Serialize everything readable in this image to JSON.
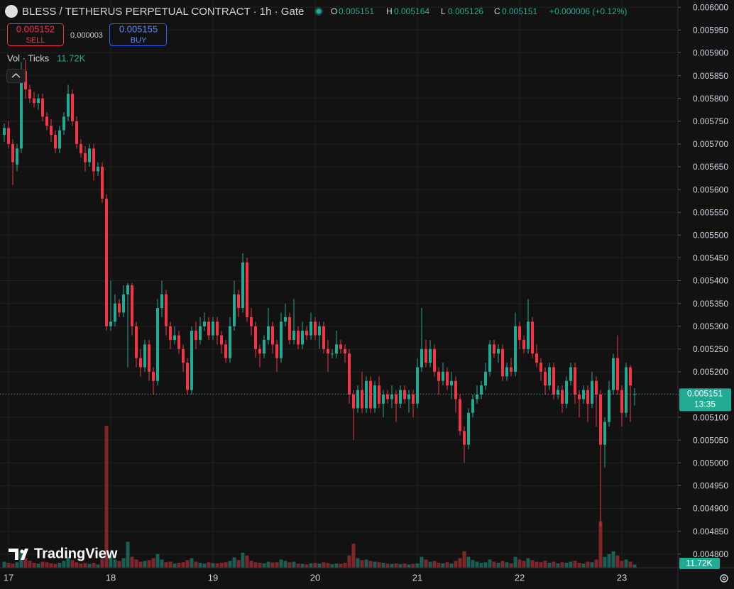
{
  "header": {
    "title": "BLESS / TETHERUS PERPETUAL CONTRACT · 1h · Gate",
    "legend_labels": [
      "O",
      "H",
      "L",
      "C"
    ],
    "change": "+0.000006 (+0.12%)"
  },
  "trade": {
    "sell_price": 0.005152,
    "sell": "SELL",
    "spread": 3e-06,
    "buy_price": 0.005155,
    "buy": "BUY"
  },
  "countdown": "13:35",
  "logo": "TradingView",
  "chart_data": {
    "type": "candlestick",
    "categories": [
      null,
      "17",
      null,
      null,
      null,
      null,
      null,
      null,
      null,
      null,
      null,
      null,
      null,
      null,
      null,
      null,
      null,
      null,
      null,
      null,
      null,
      null,
      null,
      null,
      null,
      "18",
      null,
      null,
      null,
      null,
      null,
      null,
      null,
      null,
      null,
      null,
      null,
      null,
      null,
      null,
      null,
      null,
      null,
      null,
      null,
      null,
      null,
      null,
      null,
      "19",
      null,
      null,
      null,
      null,
      null,
      null,
      null,
      null,
      null,
      null,
      null,
      null,
      null,
      null,
      null,
      null,
      null,
      null,
      null,
      null,
      null,
      null,
      null,
      "20",
      null,
      null,
      null,
      null,
      null,
      null,
      null,
      null,
      null,
      null,
      null,
      null,
      null,
      null,
      null,
      null,
      null,
      null,
      null,
      null,
      null,
      null,
      null,
      "21",
      null,
      null,
      null,
      null,
      null,
      null,
      null,
      null,
      null,
      null,
      null,
      null,
      null,
      null,
      null,
      null,
      null,
      null,
      null,
      null,
      null,
      null,
      null,
      "22",
      null,
      null,
      null,
      null,
      null,
      null,
      null,
      null,
      null,
      null,
      null,
      null,
      null,
      null,
      null,
      null,
      null,
      null,
      null,
      null,
      null,
      null,
      null,
      "23",
      null,
      null,
      null
    ],
    "open": [
      0.00572,
      0.005735,
      0.0057,
      0.005655,
      0.00569,
      0.00586,
      0.00582,
      0.0058,
      0.00579,
      0.0058,
      0.00576,
      0.00574,
      0.00572,
      0.00569,
      0.00573,
      0.00576,
      0.00581,
      0.00575,
      0.0057,
      0.00568,
      0.00566,
      0.00569,
      0.00564,
      0.00565,
      0.00558,
      0.0053,
      0.00531,
      0.00535,
      0.00533,
      0.00537,
      0.00539,
      0.0053,
      0.00523,
      0.00521,
      0.00526,
      0.0052,
      0.00518,
      0.00534,
      0.00537,
      0.0053,
      0.00527,
      0.00528,
      0.00525,
      0.00522,
      0.00516,
      0.00529,
      0.00527,
      0.0053,
      0.00531,
      0.00528,
      0.00531,
      0.00528,
      0.00526,
      0.00523,
      0.0053,
      0.00537,
      0.00534,
      0.00544,
      0.00532,
      0.0053,
      0.00525,
      0.00524,
      0.00527,
      0.0053,
      0.00526,
      0.00523,
      0.00531,
      0.00532,
      0.00527,
      0.00529,
      0.00526,
      0.00529,
      0.00528,
      0.00531,
      0.00528,
      0.0053,
      0.00525,
      0.00524,
      0.00524,
      0.00526,
      0.00525,
      0.00524,
      0.00515,
      0.00512,
      0.00516,
      0.00512,
      0.00518,
      0.00512,
      0.00517,
      0.00513,
      0.00515,
      0.00514,
      0.00515,
      0.00513,
      0.00516,
      0.00514,
      0.00515,
      0.00513,
      0.00521,
      0.00525,
      0.00522,
      0.00525,
      0.0052,
      0.00518,
      0.0052,
      0.00517,
      0.00518,
      0.00514,
      0.00507,
      0.00504,
      0.00511,
      0.00514,
      0.00515,
      0.00517,
      0.0052,
      0.00526,
      0.00524,
      0.00525,
      0.00519,
      0.00521,
      0.0052,
      0.0053,
      0.00527,
      0.00525,
      0.00531,
      0.00524,
      0.00522,
      0.0052,
      0.00517,
      0.00521,
      0.00515,
      0.00516,
      0.00513,
      0.00518,
      0.00521,
      0.00515,
      0.00514,
      0.00516,
      0.00513,
      0.00518,
      0.00515,
      0.00504,
      0.00509,
      0.00516,
      0.00523,
      0.00516,
      0.00511,
      0.00521,
      0.005151
    ],
    "high": [
      0.005745,
      0.00575,
      0.00571,
      0.0057,
      0.00588,
      0.005885,
      0.00583,
      0.005815,
      0.00581,
      0.00581,
      0.00577,
      0.005755,
      0.00573,
      0.00574,
      0.00577,
      0.00583,
      0.00582,
      0.00576,
      0.00571,
      0.005695,
      0.0057,
      0.0057,
      0.00566,
      0.00566,
      0.00559,
      0.0054,
      0.00537,
      0.00536,
      0.00539,
      0.005395,
      0.005395,
      0.00531,
      0.00525,
      0.00527,
      0.00527,
      0.00521,
      0.00536,
      0.0054,
      0.00538,
      0.00531,
      0.0053,
      0.00529,
      0.00526,
      0.00523,
      0.0053,
      0.00531,
      0.00532,
      0.00533,
      0.00532,
      0.00532,
      0.00532,
      0.00529,
      0.00527,
      0.00532,
      0.0054,
      0.00538,
      0.00546,
      0.00545,
      0.00534,
      0.00531,
      0.00526,
      0.00528,
      0.00534,
      0.00531,
      0.00527,
      0.00533,
      0.00535,
      0.00533,
      0.00536,
      0.0053,
      0.00531,
      0.0053,
      0.00533,
      0.00532,
      0.00531,
      0.00531,
      0.00527,
      0.00525,
      0.00529,
      0.00527,
      0.00526,
      0.00525,
      0.00516,
      0.00517,
      0.0052,
      0.00519,
      0.00519,
      0.00518,
      0.00519,
      0.00516,
      0.00516,
      0.00517,
      0.00516,
      0.00517,
      0.00517,
      0.00516,
      0.00516,
      0.00523,
      0.00534,
      0.00527,
      0.00527,
      0.00526,
      0.00521,
      0.00522,
      0.00521,
      0.0052,
      0.00519,
      0.00515,
      0.00508,
      0.00512,
      0.00515,
      0.00517,
      0.00518,
      0.00522,
      0.00527,
      0.00527,
      0.00526,
      0.00526,
      0.00522,
      0.00523,
      0.00533,
      0.00531,
      0.00528,
      0.00536,
      0.00532,
      0.00526,
      0.00523,
      0.00521,
      0.00522,
      0.00522,
      0.00517,
      0.00517,
      0.00519,
      0.00522,
      0.00522,
      0.00516,
      0.00517,
      0.00517,
      0.0052,
      0.00519,
      0.00516,
      0.0051,
      0.00518,
      0.00524,
      0.00528,
      0.00517,
      0.00522,
      0.005215,
      0.005164
    ],
    "low": [
      0.005705,
      0.00569,
      0.00561,
      0.00564,
      0.00568,
      0.0058,
      0.00579,
      0.00578,
      0.005775,
      0.00575,
      0.00573,
      0.005705,
      0.00568,
      0.00568,
      0.00572,
      0.00575,
      0.00574,
      0.00569,
      0.00567,
      0.00564,
      0.00565,
      0.00562,
      0.00563,
      0.00557,
      0.00529,
      0.00529,
      0.0053,
      0.00532,
      0.00532,
      0.00521,
      0.00528,
      0.00521,
      0.00519,
      0.0052,
      0.00518,
      0.00515,
      0.00517,
      0.00532,
      0.00528,
      0.00525,
      0.00526,
      0.00524,
      0.0052,
      0.00515,
      0.00515,
      0.00525,
      0.00526,
      0.00529,
      0.00527,
      0.00527,
      0.00526,
      0.00524,
      0.00522,
      0.00522,
      0.00529,
      0.00532,
      0.00533,
      0.00531,
      0.00528,
      0.00523,
      0.00521,
      0.00523,
      0.00526,
      0.00524,
      0.0052,
      0.00522,
      0.0053,
      0.00526,
      0.00526,
      0.00525,
      0.00525,
      0.00527,
      0.00527,
      0.00527,
      0.00525,
      0.00524,
      0.0052,
      0.00523,
      0.00523,
      0.00524,
      0.00522,
      0.00513,
      0.00505,
      0.00511,
      0.00511,
      0.00511,
      0.00511,
      0.00511,
      0.00512,
      0.0051,
      0.00513,
      0.00512,
      0.00509,
      0.00512,
      0.00513,
      0.00511,
      0.0051,
      0.00512,
      0.0052,
      0.00521,
      0.00521,
      0.00519,
      0.00515,
      0.00517,
      0.00516,
      0.00514,
      0.00511,
      0.00506,
      0.005,
      0.00503,
      0.0051,
      0.00513,
      0.00514,
      0.00516,
      0.00519,
      0.00523,
      0.00522,
      0.00518,
      0.00518,
      0.00519,
      0.00519,
      0.00525,
      0.00524,
      0.00524,
      0.00523,
      0.00521,
      0.00518,
      0.00515,
      0.00516,
      0.00514,
      0.00514,
      0.00511,
      0.00512,
      0.00517,
      0.00513,
      0.0051,
      0.00513,
      0.00509,
      0.00512,
      0.00508,
      0.00486,
      0.00499,
      0.00508,
      0.00515,
      0.00515,
      0.00508,
      0.0051,
      0.00509,
      0.005126
    ],
    "close": [
      0.005735,
      0.0057,
      0.00566,
      0.00569,
      0.00586,
      0.00582,
      0.0058,
      0.00579,
      0.0058,
      0.00576,
      0.00574,
      0.00572,
      0.00569,
      0.00573,
      0.00576,
      0.00581,
      0.00575,
      0.0057,
      0.00568,
      0.00566,
      0.00569,
      0.00564,
      0.00565,
      0.00558,
      0.0053,
      0.00531,
      0.00535,
      0.00533,
      0.00537,
      0.00539,
      0.0053,
      0.00523,
      0.00521,
      0.00526,
      0.0052,
      0.00518,
      0.00534,
      0.00537,
      0.0053,
      0.00527,
      0.00528,
      0.00525,
      0.00522,
      0.00516,
      0.00529,
      0.00527,
      0.0053,
      0.00531,
      0.00528,
      0.00531,
      0.00528,
      0.00526,
      0.00523,
      0.0053,
      0.00537,
      0.00534,
      0.00544,
      0.00532,
      0.0053,
      0.00525,
      0.00524,
      0.00527,
      0.0053,
      0.00526,
      0.00523,
      0.00531,
      0.00532,
      0.00527,
      0.00529,
      0.00526,
      0.00529,
      0.00528,
      0.00531,
      0.00528,
      0.0053,
      0.00525,
      0.00524,
      0.00524,
      0.00526,
      0.00525,
      0.00524,
      0.00515,
      0.00512,
      0.00516,
      0.00512,
      0.00518,
      0.00512,
      0.00517,
      0.00513,
      0.00515,
      0.00514,
      0.00515,
      0.00513,
      0.00516,
      0.00514,
      0.00515,
      0.00513,
      0.00521,
      0.00525,
      0.00522,
      0.00525,
      0.0052,
      0.00518,
      0.0052,
      0.00517,
      0.00518,
      0.00514,
      0.00507,
      0.00504,
      0.00511,
      0.00514,
      0.00515,
      0.00517,
      0.0052,
      0.00526,
      0.00524,
      0.00525,
      0.00519,
      0.00521,
      0.0052,
      0.0053,
      0.00527,
      0.00525,
      0.00531,
      0.00524,
      0.00522,
      0.0052,
      0.00517,
      0.00521,
      0.00515,
      0.00516,
      0.00513,
      0.00518,
      0.00521,
      0.00515,
      0.00514,
      0.00516,
      0.00513,
      0.00518,
      0.00515,
      0.00504,
      0.00509,
      0.00516,
      0.00523,
      0.00516,
      0.00511,
      0.00521,
      0.00517,
      0.005151
    ],
    "volume": {
      "name": "Vol · Ticks",
      "values": [
        22000,
        18000,
        15000,
        20000,
        60000,
        35000,
        25000,
        18000,
        15000,
        22000,
        20000,
        16000,
        14000,
        18000,
        25000,
        40000,
        28000,
        20000,
        15000,
        17000,
        14000,
        18000,
        12000,
        30000,
        520000,
        45000,
        30000,
        25000,
        35000,
        95000,
        40000,
        30000,
        22000,
        25000,
        28000,
        35000,
        50000,
        30000,
        20000,
        22000,
        15000,
        18000,
        20000,
        28000,
        35000,
        22000,
        18000,
        15000,
        20000,
        17000,
        16000,
        18000,
        20000,
        25000,
        38000,
        28000,
        55000,
        45000,
        25000,
        20000,
        18000,
        16000,
        22000,
        19000,
        20000,
        30000,
        25000,
        20000,
        22000,
        15000,
        14000,
        12000,
        16000,
        18000,
        15000,
        20000,
        17000,
        13000,
        15000,
        14000,
        18000,
        45000,
        88000,
        35000,
        28000,
        30000,
        25000,
        22000,
        20000,
        18000,
        15000,
        14000,
        16000,
        13000,
        15000,
        12000,
        14000,
        16000,
        40000,
        30000,
        22000,
        25000,
        18000,
        16000,
        20000,
        15000,
        25000,
        35000,
        60000,
        40000,
        28000,
        22000,
        18000,
        20000,
        30000,
        22000,
        18000,
        25000,
        20000,
        16000,
        40000,
        30000,
        25000,
        35000,
        28000,
        22000,
        20000,
        25000,
        18000,
        22000,
        16000,
        20000,
        18000,
        22000,
        25000,
        18000,
        15000,
        22000,
        20000,
        30000,
        170000,
        40000,
        50000,
        60000,
        45000,
        25000,
        30000,
        22000,
        11720
      ],
      "value_labels": [
        null,
        null,
        null,
        null,
        null,
        null,
        null,
        null,
        null,
        null,
        null,
        null,
        null,
        null,
        null,
        null,
        null,
        null,
        null,
        null,
        null,
        null,
        null,
        null,
        null,
        null,
        null,
        null,
        null,
        null,
        null,
        null,
        null,
        null,
        null,
        null,
        null,
        null,
        null,
        null,
        null,
        null,
        null,
        null,
        null,
        null,
        null,
        null,
        null,
        null,
        null,
        null,
        null,
        null,
        null,
        null,
        null,
        null,
        null,
        null,
        null,
        null,
        null,
        null,
        null,
        null,
        null,
        null,
        null,
        null,
        null,
        null,
        null,
        null,
        null,
        null,
        null,
        null,
        null,
        null,
        null,
        null,
        null,
        null,
        null,
        null,
        null,
        null,
        null,
        null,
        null,
        null,
        null,
        null,
        null,
        null,
        null,
        null,
        null,
        null,
        null,
        null,
        null,
        null,
        null,
        null,
        null,
        null,
        null,
        null,
        null,
        null,
        null,
        null,
        null,
        null,
        null,
        null,
        null,
        null,
        null,
        null,
        null,
        null,
        null,
        null,
        null,
        null,
        null,
        null,
        null,
        null,
        null,
        null,
        null,
        null,
        null,
        null,
        null,
        null,
        null,
        null,
        null,
        null,
        null,
        null,
        null,
        null,
        "11.72K"
      ]
    },
    "colors": {
      "up": "#22ab94",
      "down": "#f23645"
    },
    "ylim": [
      0.00477,
      0.006016
    ],
    "yticks": [
      {
        "value": 0.0048,
        "label": "0.004800"
      },
      {
        "value": 0.00485,
        "label": "0.004850"
      },
      {
        "value": 0.0049,
        "label": "0.004900"
      },
      {
        "value": 0.00495,
        "label": "0.004950"
      },
      {
        "value": 0.005,
        "label": "0.005000"
      },
      {
        "value": 0.00505,
        "label": "0.005050"
      },
      {
        "value": 0.0051,
        "label": "0.005100"
      },
      {
        "value": 0.00515,
        "label": "0.005150"
      },
      {
        "value": 0.0052,
        "label": "0.005200"
      },
      {
        "value": 0.00525,
        "label": "0.005250"
      },
      {
        "value": 0.0053,
        "label": "0.005300"
      },
      {
        "value": 0.00535,
        "label": "0.005350"
      },
      {
        "value": 0.0054,
        "label": "0.005400"
      },
      {
        "value": 0.00545,
        "label": "0.005450"
      },
      {
        "value": 0.0055,
        "label": "0.005500"
      },
      {
        "value": 0.00555,
        "label": "0.005550"
      },
      {
        "value": 0.0056,
        "label": "0.005600"
      },
      {
        "value": 0.00565,
        "label": "0.005650"
      },
      {
        "value": 0.0057,
        "label": "0.005700"
      },
      {
        "value": 0.00575,
        "label": "0.005750"
      },
      {
        "value": 0.0058,
        "label": "0.005800"
      },
      {
        "value": 0.00585,
        "label": "0.005850"
      },
      {
        "value": 0.0059,
        "label": "0.005900"
      },
      {
        "value": 0.00595,
        "label": "0.005950"
      },
      {
        "value": 0.006,
        "label": "0.006000"
      }
    ],
    "grid": true
  }
}
